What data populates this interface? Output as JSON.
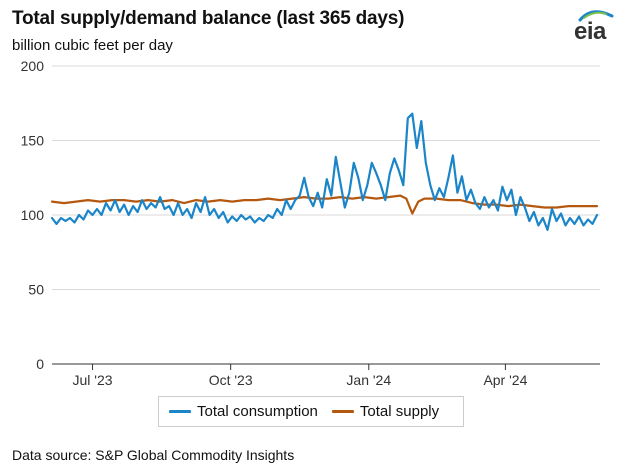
{
  "header": {
    "title": "Total supply/demand balance (last 365 days)",
    "subtitle": "billion cubic feet per day"
  },
  "logo": {
    "text": "eia"
  },
  "source": {
    "text": "Data source: S&P Global Commodity Insights"
  },
  "colors": {
    "consumption": "#1a85c8",
    "supply": "#b5580f",
    "grid": "#d9d9d9",
    "axis": "#333333"
  },
  "chart_data": {
    "type": "line",
    "title": "Total supply/demand balance (last 365 days)",
    "ylabel": "billion cubic feet per day",
    "xlabel": "",
    "ylim": [
      0,
      200
    ],
    "yticks": [
      0,
      50,
      100,
      150,
      200
    ],
    "xlim": [
      0,
      365
    ],
    "xticks": [
      {
        "day": 27,
        "label": "Jul '23"
      },
      {
        "day": 119,
        "label": "Oct '23"
      },
      {
        "day": 211,
        "label": "Jan '24"
      },
      {
        "day": 302,
        "label": "Apr '24"
      }
    ],
    "series": [
      {
        "name": "Total consumption",
        "key": "consumption",
        "points": [
          [
            0,
            98
          ],
          [
            3,
            94
          ],
          [
            6,
            98
          ],
          [
            9,
            96
          ],
          [
            12,
            98
          ],
          [
            15,
            95
          ],
          [
            18,
            100
          ],
          [
            21,
            97
          ],
          [
            24,
            103
          ],
          [
            27,
            100
          ],
          [
            30,
            104
          ],
          [
            33,
            100
          ],
          [
            36,
            108
          ],
          [
            39,
            103
          ],
          [
            42,
            110
          ],
          [
            45,
            102
          ],
          [
            48,
            107
          ],
          [
            51,
            100
          ],
          [
            54,
            106
          ],
          [
            57,
            102
          ],
          [
            60,
            110
          ],
          [
            63,
            104
          ],
          [
            66,
            108
          ],
          [
            69,
            105
          ],
          [
            72,
            112
          ],
          [
            75,
            104
          ],
          [
            78,
            106
          ],
          [
            81,
            100
          ],
          [
            84,
            108
          ],
          [
            87,
            100
          ],
          [
            90,
            104
          ],
          [
            93,
            98
          ],
          [
            96,
            108
          ],
          [
            99,
            102
          ],
          [
            102,
            112
          ],
          [
            105,
            100
          ],
          [
            108,
            104
          ],
          [
            111,
            98
          ],
          [
            114,
            102
          ],
          [
            117,
            95
          ],
          [
            120,
            99
          ],
          [
            123,
            96
          ],
          [
            126,
            100
          ],
          [
            129,
            97
          ],
          [
            132,
            99
          ],
          [
            135,
            95
          ],
          [
            138,
            98
          ],
          [
            141,
            96
          ],
          [
            144,
            100
          ],
          [
            147,
            98
          ],
          [
            150,
            104
          ],
          [
            153,
            100
          ],
          [
            156,
            110
          ],
          [
            159,
            104
          ],
          [
            162,
            110
          ],
          [
            165,
            113
          ],
          [
            168,
            125
          ],
          [
            171,
            112
          ],
          [
            174,
            106
          ],
          [
            177,
            115
          ],
          [
            180,
            105
          ],
          [
            183,
            124
          ],
          [
            186,
            113
          ],
          [
            189,
            139
          ],
          [
            192,
            122
          ],
          [
            195,
            105
          ],
          [
            198,
            115
          ],
          [
            201,
            135
          ],
          [
            204,
            125
          ],
          [
            207,
            110
          ],
          [
            210,
            120
          ],
          [
            213,
            135
          ],
          [
            216,
            128
          ],
          [
            219,
            120
          ],
          [
            222,
            110
          ],
          [
            225,
            128
          ],
          [
            228,
            138
          ],
          [
            231,
            130
          ],
          [
            234,
            120
          ],
          [
            237,
            165
          ],
          [
            240,
            168
          ],
          [
            243,
            145
          ],
          [
            246,
            163
          ],
          [
            249,
            135
          ],
          [
            252,
            120
          ],
          [
            255,
            110
          ],
          [
            258,
            118
          ],
          [
            261,
            112
          ],
          [
            264,
            125
          ],
          [
            267,
            140
          ],
          [
            270,
            115
          ],
          [
            273,
            126
          ],
          [
            276,
            110
          ],
          [
            279,
            117
          ],
          [
            282,
            108
          ],
          [
            285,
            104
          ],
          [
            288,
            112
          ],
          [
            291,
            105
          ],
          [
            294,
            110
          ],
          [
            297,
            103
          ],
          [
            300,
            119
          ],
          [
            303,
            110
          ],
          [
            306,
            117
          ],
          [
            309,
            100
          ],
          [
            312,
            112
          ],
          [
            315,
            105
          ],
          [
            318,
            96
          ],
          [
            321,
            102
          ],
          [
            324,
            93
          ],
          [
            327,
            98
          ],
          [
            330,
            90
          ],
          [
            333,
            104
          ],
          [
            336,
            96
          ],
          [
            339,
            101
          ],
          [
            342,
            93
          ],
          [
            345,
            98
          ],
          [
            348,
            94
          ],
          [
            351,
            99
          ],
          [
            354,
            93
          ],
          [
            357,
            97
          ],
          [
            360,
            94
          ],
          [
            363,
            100
          ]
        ]
      },
      {
        "name": "Total supply",
        "key": "supply",
        "points": [
          [
            0,
            109
          ],
          [
            8,
            108
          ],
          [
            16,
            109
          ],
          [
            24,
            110
          ],
          [
            32,
            109
          ],
          [
            40,
            110
          ],
          [
            48,
            110
          ],
          [
            56,
            109
          ],
          [
            64,
            110
          ],
          [
            72,
            109
          ],
          [
            80,
            110
          ],
          [
            88,
            108
          ],
          [
            96,
            110
          ],
          [
            104,
            109
          ],
          [
            112,
            110
          ],
          [
            120,
            109
          ],
          [
            128,
            110
          ],
          [
            136,
            110
          ],
          [
            144,
            111
          ],
          [
            152,
            110
          ],
          [
            160,
            111
          ],
          [
            168,
            112
          ],
          [
            176,
            111
          ],
          [
            184,
            111
          ],
          [
            192,
            112
          ],
          [
            200,
            111
          ],
          [
            208,
            112
          ],
          [
            216,
            111
          ],
          [
            224,
            112
          ],
          [
            232,
            113
          ],
          [
            236,
            111
          ],
          [
            240,
            101
          ],
          [
            244,
            109
          ],
          [
            248,
            111
          ],
          [
            256,
            111
          ],
          [
            264,
            110
          ],
          [
            272,
            110
          ],
          [
            280,
            108
          ],
          [
            288,
            107
          ],
          [
            296,
            107
          ],
          [
            304,
            106
          ],
          [
            312,
            107
          ],
          [
            320,
            106
          ],
          [
            328,
            105
          ],
          [
            336,
            105
          ],
          [
            344,
            106
          ],
          [
            352,
            106
          ],
          [
            360,
            106
          ],
          [
            363,
            106
          ]
        ]
      }
    ]
  }
}
